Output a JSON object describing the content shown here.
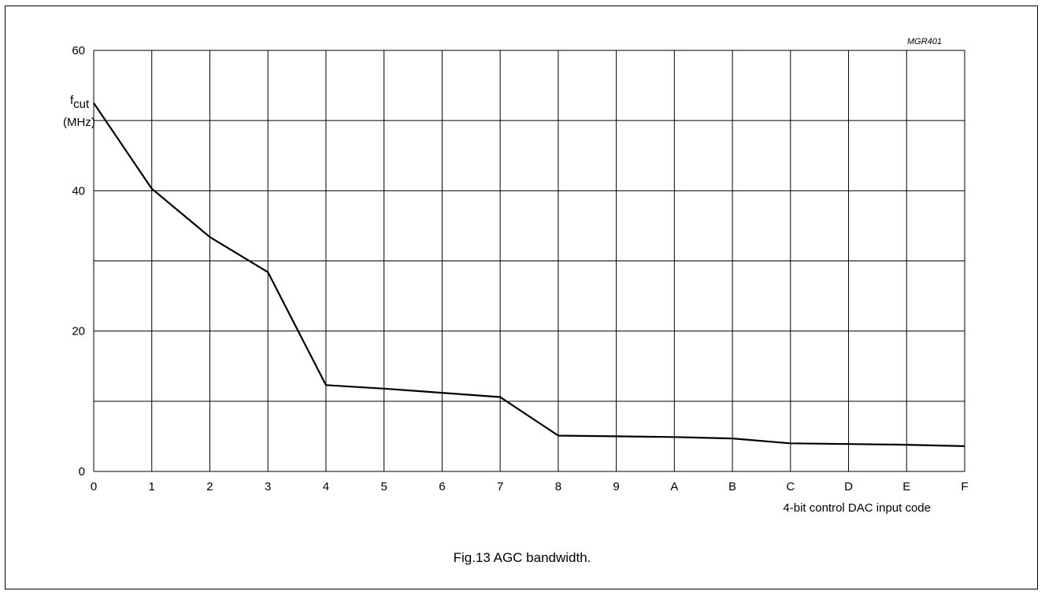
{
  "figure": {
    "ref_code": "MGR401",
    "caption": "Fig.13  AGC bandwidth."
  },
  "chart_data": {
    "type": "line",
    "title": "",
    "ylabel_main": "f",
    "ylabel_sub": "cut",
    "ylabel_unit": "(MHz)",
    "xlabel": "4-bit control DAC input code",
    "x": [
      "0",
      "1",
      "2",
      "3",
      "4",
      "5",
      "6",
      "7",
      "8",
      "9",
      "A",
      "B",
      "C",
      "D",
      "E",
      "F"
    ],
    "series": [
      {
        "values": [
          52.5,
          40.3,
          33.4,
          28.4,
          12.3,
          11.8,
          11.2,
          10.6,
          5.1,
          5.0,
          4.9,
          4.7,
          4.0,
          3.9,
          3.8,
          3.6
        ]
      }
    ],
    "ylim": [
      0,
      60
    ],
    "y_ticks": [
      0,
      20,
      40,
      60
    ],
    "y_gridlines": [
      0,
      10,
      20,
      30,
      40,
      50,
      60
    ],
    "grid": true,
    "line_color": "#000000"
  }
}
